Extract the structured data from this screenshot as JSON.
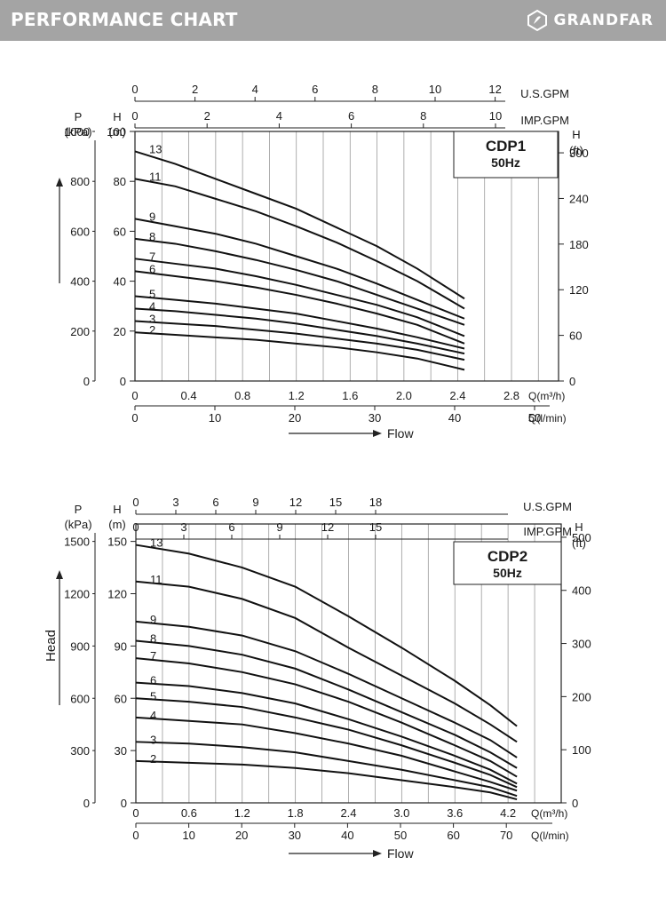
{
  "header": {
    "title": "PERFORMANCE CHART",
    "brand": "GRANDFAR",
    "colors": {
      "band": "#a4a4a4",
      "text": "#ffffff"
    }
  },
  "chart_data": [
    {
      "type": "line",
      "model": "CDP1",
      "frequency": "50Hz",
      "xlabel": "Q(m³/h)",
      "x_ticks": [
        "0",
        "0.4",
        "0.8",
        "1.2",
        "1.6",
        "2.0",
        "2.4",
        "2.8"
      ],
      "xlim": [
        0,
        3.15
      ],
      "x2_label": "Q(l/min)",
      "x2_ticks": [
        "0",
        "10",
        "20",
        "30",
        "40",
        "50"
      ],
      "top_axis_1": {
        "label": "U.S.GPM",
        "ticks": [
          "0",
          "2",
          "4",
          "6",
          "8",
          "10",
          "12"
        ]
      },
      "top_axis_2": {
        "label": "IMP.GPM",
        "ticks": [
          "0",
          "2",
          "4",
          "6",
          "8",
          "10"
        ]
      },
      "ylabel_m": "H",
      "ylabel_m_unit": "(m)",
      "y_ticks_m": [
        "0",
        "20",
        "40",
        "60",
        "80",
        "100"
      ],
      "ylim": [
        0,
        100
      ],
      "ylabel_kpa": "P",
      "ylabel_kpa_unit": "(kPa)",
      "y_ticks_kpa": [
        "0",
        "200",
        "400",
        "600",
        "800",
        "1000"
      ],
      "ylabel_ft": "H",
      "ylabel_ft_unit": "(ft)",
      "y_ticks_ft": [
        "0",
        "60",
        "120",
        "180",
        "240",
        "300"
      ],
      "flow_label": "Flow",
      "x": [
        0,
        0.3,
        0.6,
        0.9,
        1.2,
        1.5,
        1.8,
        2.1,
        2.45
      ],
      "series": [
        {
          "name": "13",
          "values": [
            92,
            87,
            81,
            75,
            69,
            61.5,
            54,
            45,
            33
          ]
        },
        {
          "name": "11",
          "values": [
            81,
            78,
            73,
            68,
            62,
            55.5,
            48,
            40,
            29
          ]
        },
        {
          "name": "9",
          "values": [
            65,
            62,
            59,
            55,
            50,
            45,
            39,
            32.5,
            25
          ]
        },
        {
          "name": "8",
          "values": [
            57,
            55,
            52,
            48.5,
            44.5,
            40,
            34.5,
            29,
            22.5
          ]
        },
        {
          "name": "7",
          "values": [
            49,
            47,
            45,
            42,
            38.5,
            34.5,
            30.5,
            25.5,
            18
          ]
        },
        {
          "name": "6",
          "values": [
            44,
            42,
            40,
            37.5,
            34.5,
            31,
            27,
            22.5,
            15
          ]
        },
        {
          "name": "5",
          "values": [
            34,
            32.5,
            31,
            29,
            27,
            24,
            21,
            17.5,
            13
          ]
        },
        {
          "name": "4",
          "values": [
            29,
            28,
            26.5,
            25,
            23,
            20.5,
            18,
            15,
            11
          ]
        },
        {
          "name": "3",
          "values": [
            24,
            23,
            22,
            20.5,
            19,
            17,
            15,
            12.5,
            8.5
          ]
        },
        {
          "name": "2",
          "values": [
            19.5,
            18.5,
            17.5,
            16.5,
            15,
            13.5,
            11.5,
            9,
            4.5
          ]
        }
      ]
    },
    {
      "type": "line",
      "model": "CDP2",
      "frequency": "50Hz",
      "ylabel_side": "Head",
      "xlabel": "Q(m³/h)",
      "x_ticks": [
        "0",
        "0.6",
        "1.2",
        "1.8",
        "2.4",
        "3.0",
        "3.6",
        "4.2"
      ],
      "xlim": [
        0,
        4.8
      ],
      "x2_label": "Q(l/min)",
      "x2_ticks": [
        "0",
        "10",
        "20",
        "30",
        "40",
        "50",
        "60",
        "70"
      ],
      "top_axis_1": {
        "label": "U.S.GPM",
        "ticks": [
          "0",
          "3",
          "6",
          "9",
          "12",
          "15",
          "18"
        ]
      },
      "top_axis_2": {
        "label": "IMP.GPM",
        "ticks": [
          "0",
          "3",
          "6",
          "9",
          "12",
          "15"
        ]
      },
      "ylabel_m": "H",
      "ylabel_m_unit": "(m)",
      "y_ticks_m": [
        "0",
        "30",
        "60",
        "90",
        "120",
        "150"
      ],
      "ylim": [
        0,
        160
      ],
      "ylabel_kpa": "P",
      "ylabel_kpa_unit": "(kPa)",
      "y_ticks_kpa": [
        "0",
        "300",
        "600",
        "900",
        "1200",
        "1500"
      ],
      "ylabel_ft": "H",
      "ylabel_ft_unit": "(ft)",
      "y_ticks_ft": [
        "0",
        "100",
        "200",
        "300",
        "400",
        "500"
      ],
      "flow_label": "Flow",
      "x": [
        0,
        0.6,
        1.2,
        1.8,
        2.4,
        3.0,
        3.6,
        4.0,
        4.3
      ],
      "series": [
        {
          "name": "13",
          "values": [
            148,
            143,
            135,
            124,
            107,
            89,
            70,
            56,
            44
          ]
        },
        {
          "name": "11",
          "values": [
            127,
            124,
            117,
            106,
            89,
            73,
            57,
            45,
            35
          ]
        },
        {
          "name": "9",
          "values": [
            104,
            101,
            96,
            87,
            74,
            60,
            46,
            36,
            26
          ]
        },
        {
          "name": "8",
          "values": [
            93,
            90,
            85,
            77,
            65,
            52,
            39,
            29,
            20
          ]
        },
        {
          "name": "7",
          "values": [
            83,
            80,
            75,
            68,
            58,
            46,
            33,
            24,
            15
          ]
        },
        {
          "name": "6",
          "values": [
            69,
            67,
            63,
            57,
            48,
            38,
            27,
            19,
            11
          ]
        },
        {
          "name": "5",
          "values": [
            60,
            58,
            55,
            49,
            42,
            33,
            23,
            16,
            9
          ]
        },
        {
          "name": "4",
          "values": [
            49,
            47,
            45,
            40,
            34,
            27,
            18,
            12,
            7
          ]
        },
        {
          "name": "3",
          "values": [
            35,
            34,
            32,
            29,
            24,
            19,
            13,
            9,
            4
          ]
        },
        {
          "name": "2",
          "values": [
            24,
            23,
            22,
            20,
            17,
            13,
            9,
            6,
            2
          ]
        }
      ]
    }
  ]
}
